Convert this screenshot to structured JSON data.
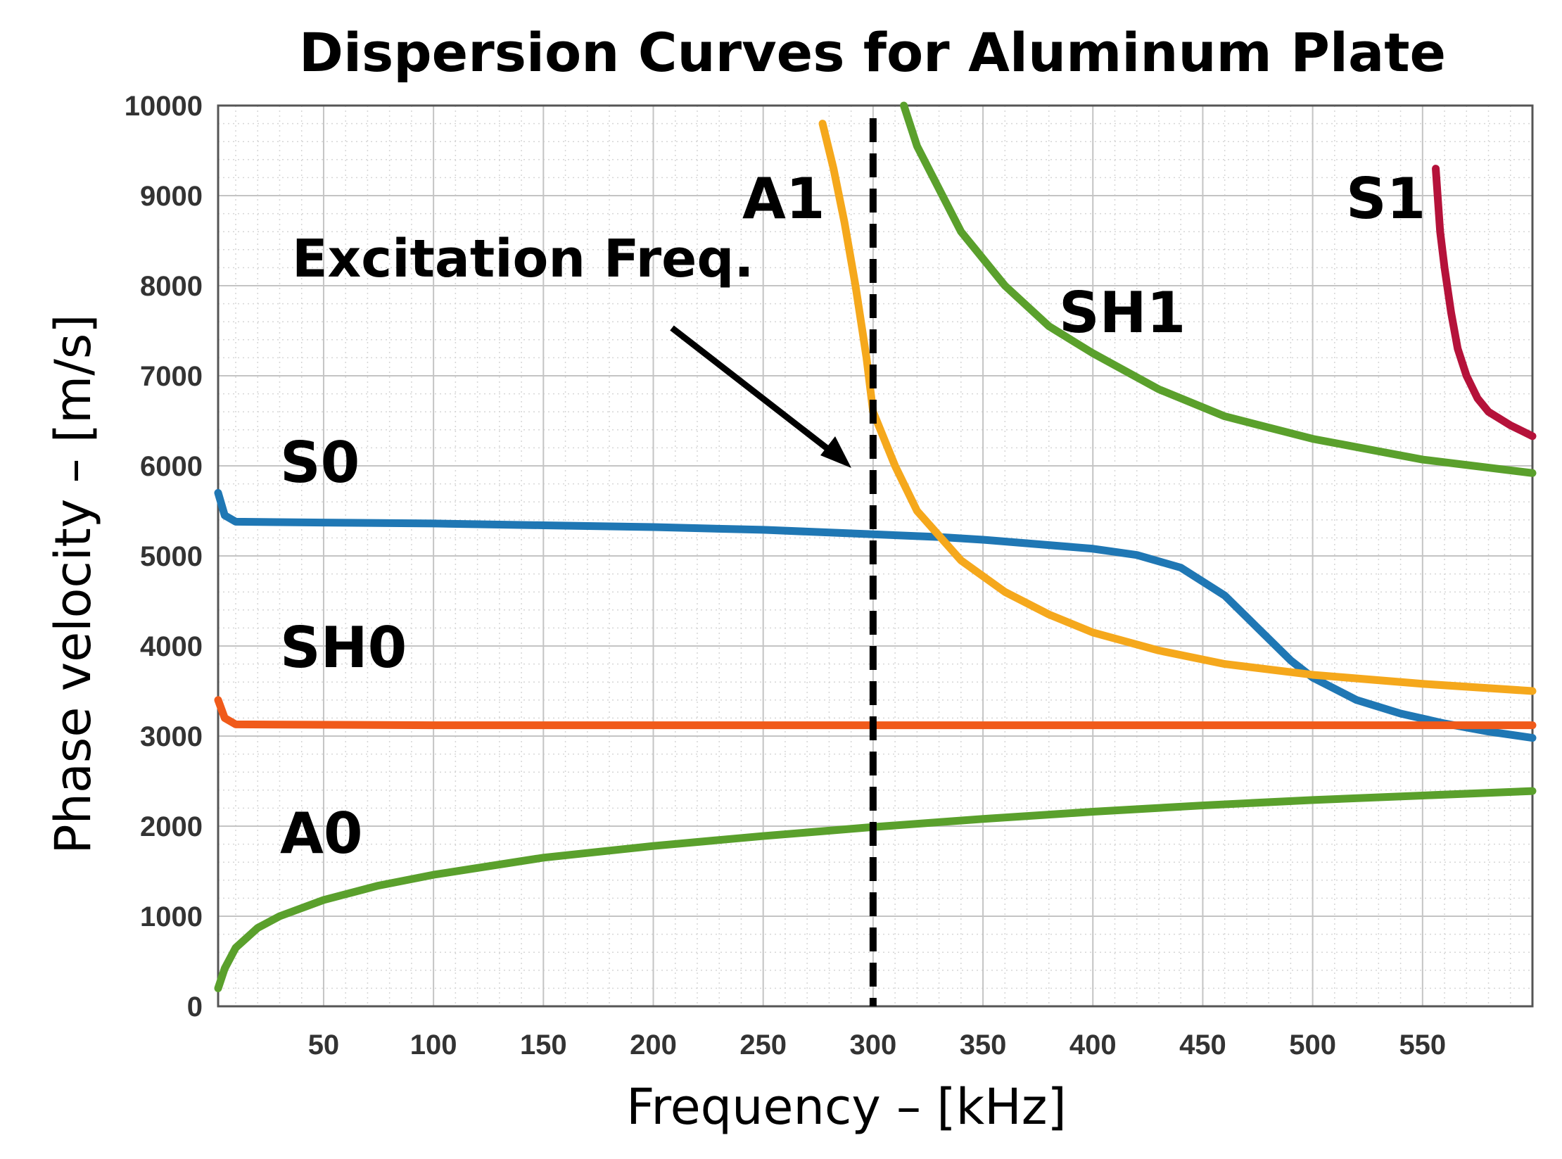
{
  "chart_data": {
    "type": "line",
    "title": "Dispersion Curves for Aluminum Plate",
    "xlabel": "Frequency – [kHz]",
    "ylabel": "Phase velocity – [m/s]",
    "xlim": [
      2,
      600
    ],
    "ylim": [
      0,
      10000
    ],
    "xticks": [
      50,
      100,
      150,
      200,
      250,
      300,
      350,
      400,
      450,
      500,
      550
    ],
    "yticks": [
      0,
      1000,
      2000,
      3000,
      4000,
      5000,
      6000,
      7000,
      8000,
      9000,
      10000
    ],
    "grid": true,
    "series": [
      {
        "name": "S0",
        "color": "#1f77b4",
        "x": [
          2,
          5,
          10,
          50,
          100,
          150,
          200,
          250,
          300,
          330,
          350,
          380,
          400,
          420,
          440,
          460,
          475,
          490,
          500,
          520,
          540,
          560,
          580,
          600
        ],
        "y": [
          5700,
          5450,
          5380,
          5370,
          5360,
          5340,
          5320,
          5290,
          5240,
          5210,
          5180,
          5120,
          5080,
          5010,
          4870,
          4560,
          4200,
          3840,
          3650,
          3400,
          3250,
          3140,
          3050,
          2980
        ]
      },
      {
        "name": "SH0",
        "color": "#f05a1a",
        "x": [
          2,
          5,
          10,
          100,
          200,
          300,
          400,
          500,
          600
        ],
        "y": [
          3400,
          3200,
          3130,
          3120,
          3120,
          3120,
          3120,
          3120,
          3120
        ]
      },
      {
        "name": "A0",
        "color": "#5aa02c",
        "x": [
          2,
          5,
          10,
          20,
          30,
          50,
          75,
          100,
          150,
          200,
          250,
          300,
          350,
          400,
          450,
          500,
          550,
          600
        ],
        "y": [
          200,
          420,
          650,
          870,
          1000,
          1180,
          1340,
          1460,
          1650,
          1780,
          1890,
          1990,
          2080,
          2160,
          2230,
          2290,
          2340,
          2390
        ]
      },
      {
        "name": "A1",
        "color": "#f5a81c",
        "x": [
          277,
          282,
          287,
          292,
          297,
          300,
          310,
          320,
          340,
          360,
          380,
          400,
          430,
          460,
          500,
          550,
          600
        ],
        "y": [
          9800,
          9300,
          8700,
          8000,
          7200,
          6600,
          6000,
          5500,
          4950,
          4600,
          4350,
          4150,
          3950,
          3800,
          3680,
          3580,
          3500
        ]
      },
      {
        "name": "SH1",
        "color": "#5aa02c",
        "x": [
          314,
          320,
          340,
          360,
          380,
          400,
          430,
          460,
          500,
          550,
          600
        ],
        "y": [
          10000,
          9550,
          8600,
          8000,
          7550,
          7250,
          6850,
          6550,
          6300,
          6070,
          5920
        ]
      },
      {
        "name": "S1",
        "color": "#b5123a",
        "x": [
          556,
          558,
          560,
          563,
          566,
          570,
          575,
          580,
          590,
          600
        ],
        "y": [
          9300,
          8600,
          8200,
          7700,
          7300,
          7000,
          6750,
          6600,
          6450,
          6330
        ]
      }
    ],
    "mode_labels": {
      "S0": "S0",
      "SH0": "SH0",
      "A0": "A0",
      "A1": "A1",
      "SH1": "SH1",
      "S1": "S1"
    },
    "excitation": {
      "x": 300,
      "label": "Excitation Freq."
    }
  }
}
